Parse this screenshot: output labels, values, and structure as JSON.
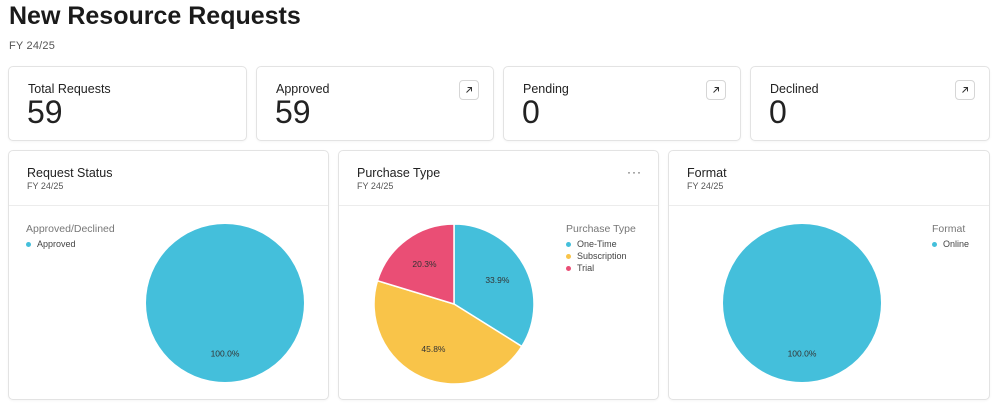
{
  "page": {
    "title": "New Resource Requests",
    "subtitle": "FY 24/25"
  },
  "kpis": [
    {
      "label": "Total Requests",
      "value": "59",
      "link": false
    },
    {
      "label": "Approved",
      "value": "59",
      "link": true
    },
    {
      "label": "Pending",
      "value": "0",
      "link": true
    },
    {
      "label": "Declined",
      "value": "0",
      "link": true
    }
  ],
  "colors": {
    "cyan": "#44bfdb",
    "yellow": "#f9c449",
    "pink": "#ea4e75"
  },
  "charts": [
    {
      "title": "Request Status",
      "subtitle": "FY 24/25",
      "more_menu": false,
      "legend_title": "Approved/Declined",
      "chart_data": {
        "type": "pie",
        "slices": [
          {
            "name": "Approved",
            "value": 100.0,
            "label": "100.0%",
            "color": "#44bfdb"
          }
        ]
      }
    },
    {
      "title": "Purchase Type",
      "subtitle": "FY 24/25",
      "more_menu": true,
      "more_label": "···",
      "legend_title": "Purchase Type",
      "chart_data": {
        "type": "pie",
        "slices": [
          {
            "name": "One-Time",
            "value": 33.9,
            "label": "33.9%",
            "color": "#44bfdb"
          },
          {
            "name": "Subscription",
            "value": 45.8,
            "label": "45.8%",
            "color": "#f9c449"
          },
          {
            "name": "Trial",
            "value": 20.3,
            "label": "20.3%",
            "color": "#ea4e75"
          }
        ]
      }
    },
    {
      "title": "Format",
      "subtitle": "FY 24/25",
      "more_menu": false,
      "legend_title": "Format",
      "chart_data": {
        "type": "pie",
        "slices": [
          {
            "name": "Online",
            "value": 100.0,
            "label": "100.0%",
            "color": "#44bfdb"
          }
        ]
      }
    }
  ]
}
